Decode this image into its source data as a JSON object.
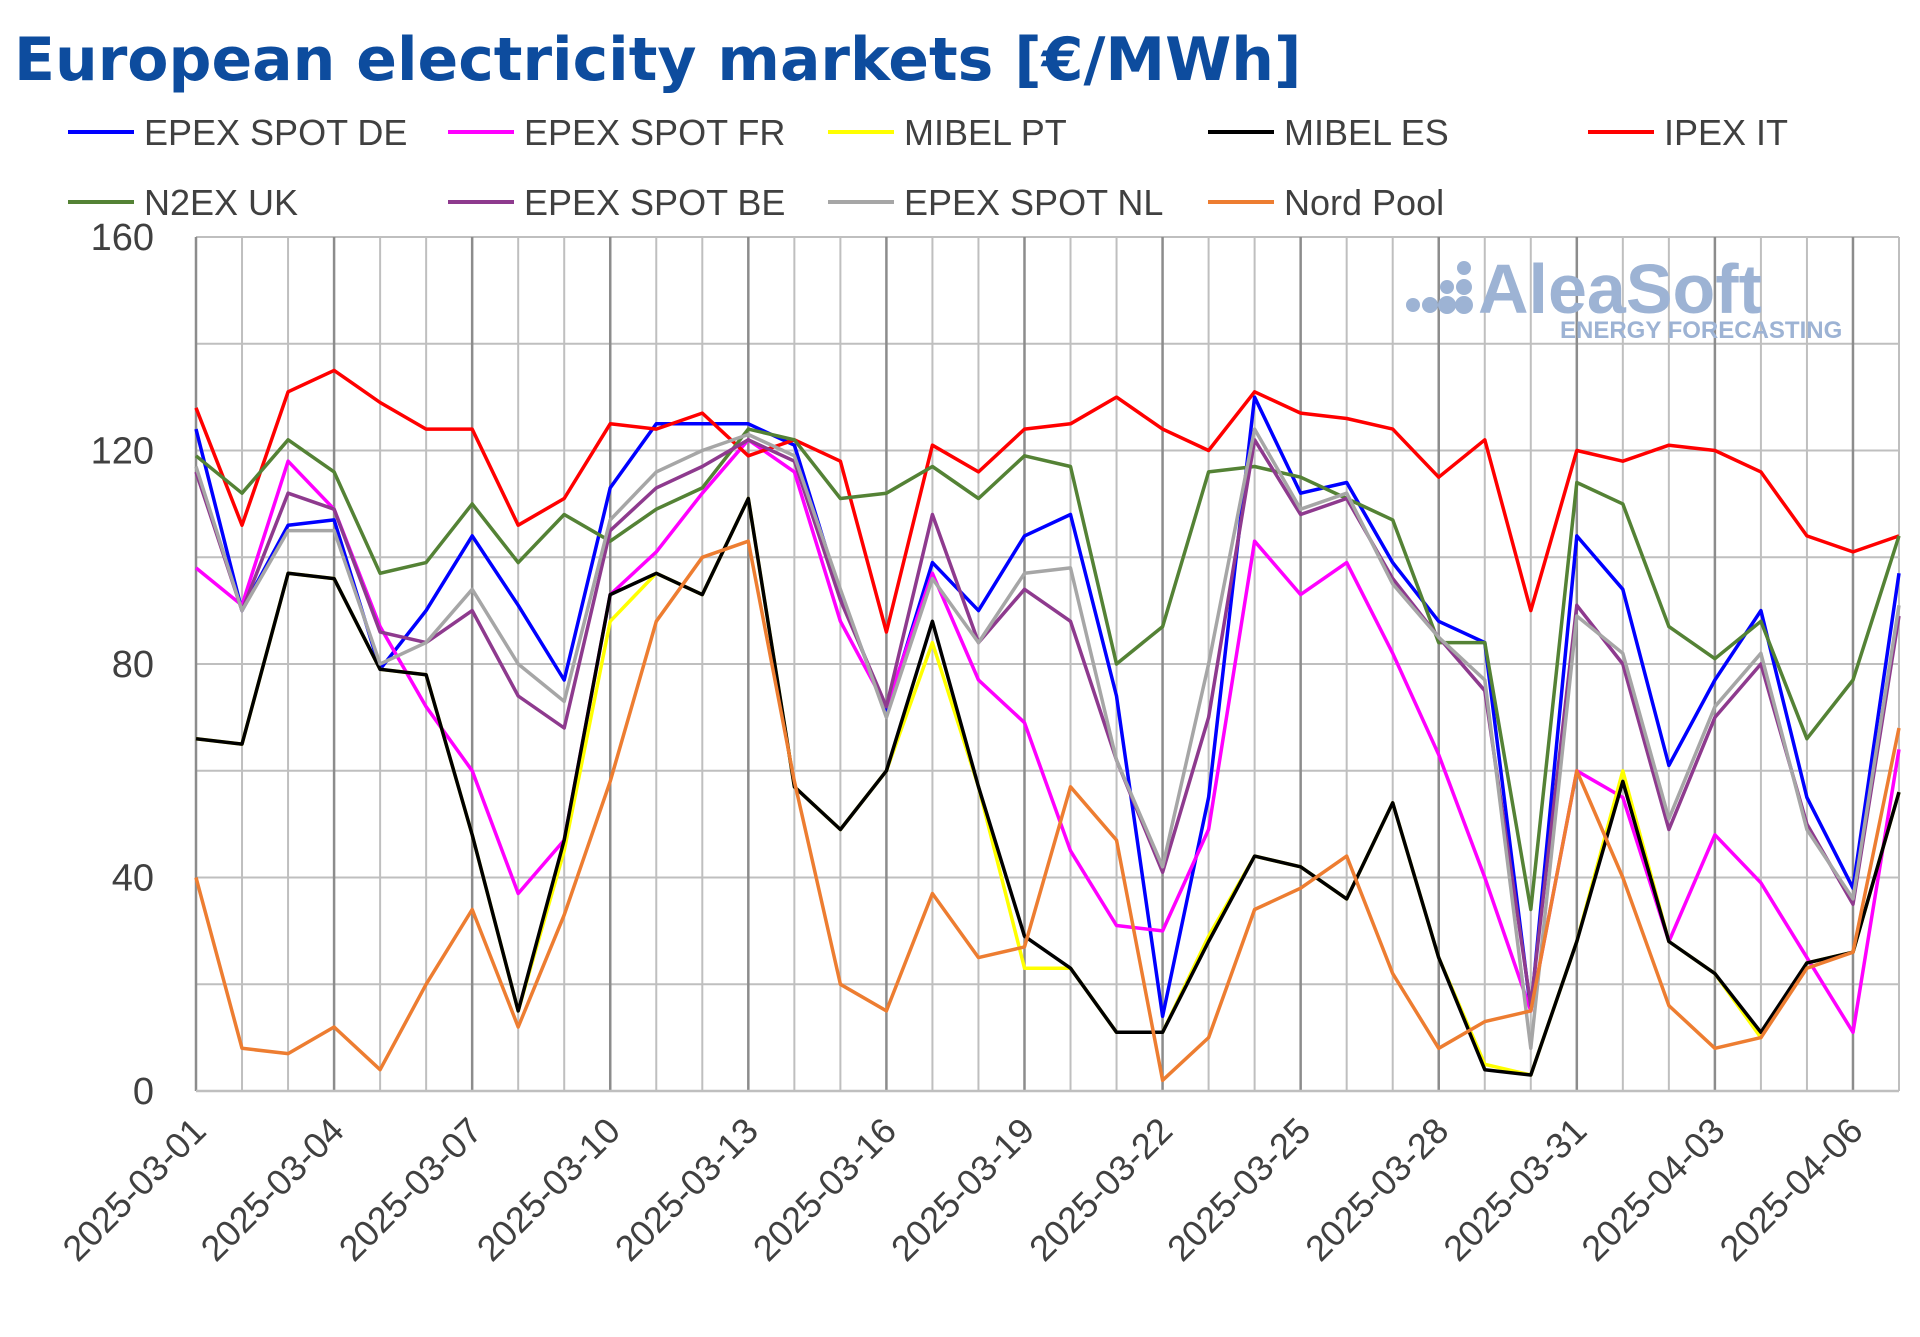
{
  "chart_data": {
    "type": "line",
    "title": "European electricity markets [€/MWh]",
    "xlabel": "",
    "ylabel": "",
    "ylim": [
      0,
      160
    ],
    "yticks": [
      0,
      40,
      80,
      120,
      160
    ],
    "grid": true,
    "legend_position": "top",
    "watermark": {
      "brand": "AleaSoft",
      "tagline": "ENERGY FORECASTING"
    },
    "x": [
      "2025-03-01",
      "2025-03-02",
      "2025-03-03",
      "2025-03-04",
      "2025-03-05",
      "2025-03-06",
      "2025-03-07",
      "2025-03-08",
      "2025-03-09",
      "2025-03-10",
      "2025-03-11",
      "2025-03-12",
      "2025-03-13",
      "2025-03-14",
      "2025-03-15",
      "2025-03-16",
      "2025-03-17",
      "2025-03-18",
      "2025-03-19",
      "2025-03-20",
      "2025-03-21",
      "2025-03-22",
      "2025-03-23",
      "2025-03-24",
      "2025-03-25",
      "2025-03-26",
      "2025-03-27",
      "2025-03-28",
      "2025-03-29",
      "2025-03-30",
      "2025-03-31",
      "2025-04-01",
      "2025-04-02",
      "2025-04-03",
      "2025-04-04",
      "2025-04-05",
      "2025-04-06",
      "2025-04-07"
    ],
    "xtick_labels": [
      "2025-03-01",
      "2025-03-04",
      "2025-03-07",
      "2025-03-10",
      "2025-03-13",
      "2025-03-16",
      "2025-03-19",
      "2025-03-22",
      "2025-03-25",
      "2025-03-28",
      "2025-03-31",
      "2025-04-03",
      "2025-04-06"
    ],
    "series": [
      {
        "name": "EPEX SPOT DE",
        "color": "#0000FF",
        "values": [
          124,
          90,
          106,
          107,
          79,
          90,
          104,
          91,
          77,
          113,
          125,
          125,
          125,
          121,
          93,
          71,
          99,
          90,
          104,
          108,
          74,
          14,
          55,
          130,
          112,
          114,
          99,
          88,
          84,
          15,
          104,
          94,
          61,
          77,
          90,
          55,
          38,
          97
        ]
      },
      {
        "name": "EPEX SPOT FR",
        "color": "#FF00FF",
        "values": [
          98,
          91,
          118,
          109,
          87,
          72,
          60,
          37,
          47,
          93,
          101,
          112,
          122,
          116,
          88,
          72,
          97,
          77,
          69,
          45,
          31,
          30,
          49,
          103,
          93,
          99,
          82,
          63,
          40,
          15,
          60,
          55,
          28,
          48,
          39,
          25,
          11,
          64
        ]
      },
      {
        "name": "MIBEL PT",
        "color": "#FFFF00",
        "values": [
          66,
          65,
          97,
          96,
          79,
          78,
          48,
          15,
          45,
          88,
          97,
          93,
          111,
          57,
          49,
          60,
          84,
          57,
          23,
          23,
          11,
          11,
          29,
          44,
          42,
          36,
          54,
          25,
          5,
          3,
          28,
          60,
          28,
          22,
          10,
          24,
          26,
          56
        ]
      },
      {
        "name": "MIBEL ES",
        "color": "#000000",
        "values": [
          66,
          65,
          97,
          96,
          79,
          78,
          48,
          15,
          47,
          93,
          97,
          93,
          111,
          57,
          49,
          60,
          88,
          57,
          29,
          23,
          11,
          11,
          28,
          44,
          42,
          36,
          54,
          25,
          4,
          3,
          28,
          58,
          28,
          22,
          11,
          24,
          26,
          56
        ]
      },
      {
        "name": "IPEX IT",
        "color": "#FF0000",
        "values": [
          128,
          106,
          131,
          135,
          129,
          124,
          124,
          106,
          111,
          125,
          124,
          127,
          119,
          122,
          118,
          86,
          121,
          116,
          124,
          125,
          130,
          124,
          120,
          131,
          127,
          126,
          124,
          115,
          122,
          90,
          120,
          118,
          121,
          120,
          116,
          104,
          101,
          104
        ]
      },
      {
        "name": "N2EX UK",
        "color": "#548235",
        "values": [
          119,
          112,
          122,
          116,
          97,
          99,
          110,
          99,
          108,
          103,
          109,
          113,
          124,
          122,
          111,
          112,
          117,
          111,
          119,
          117,
          80,
          87,
          116,
          117,
          115,
          111,
          107,
          84,
          84,
          34,
          114,
          110,
          87,
          81,
          88,
          66,
          77,
          104
        ]
      },
      {
        "name": "EPEX SPOT BE",
        "color": "#8E3A8E",
        "values": [
          116,
          90,
          112,
          109,
          86,
          84,
          90,
          74,
          68,
          105,
          113,
          117,
          122,
          118,
          92,
          72,
          108,
          84,
          94,
          88,
          62,
          41,
          70,
          122,
          108,
          111,
          96,
          85,
          75,
          16,
          91,
          80,
          49,
          70,
          80,
          50,
          35,
          89
        ]
      },
      {
        "name": "EPEX SPOT NL",
        "color": "#A6A6A6",
        "values": [
          117,
          90,
          105,
          105,
          80,
          84,
          94,
          80,
          73,
          107,
          116,
          120,
          123,
          119,
          94,
          70,
          96,
          84,
          97,
          98,
          62,
          42,
          80,
          124,
          109,
          112,
          95,
          85,
          77,
          8,
          89,
          82,
          51,
          72,
          82,
          49,
          36,
          91
        ]
      },
      {
        "name": "Nord Pool",
        "color": "#ED7D31",
        "values": [
          40,
          8,
          7,
          12,
          4,
          20,
          34,
          12,
          33,
          58,
          88,
          100,
          103,
          58,
          20,
          15,
          37,
          25,
          27,
          57,
          47,
          2,
          10,
          34,
          38,
          44,
          22,
          8,
          13,
          15,
          60,
          40,
          16,
          8,
          10,
          23,
          26,
          68
        ]
      }
    ]
  }
}
